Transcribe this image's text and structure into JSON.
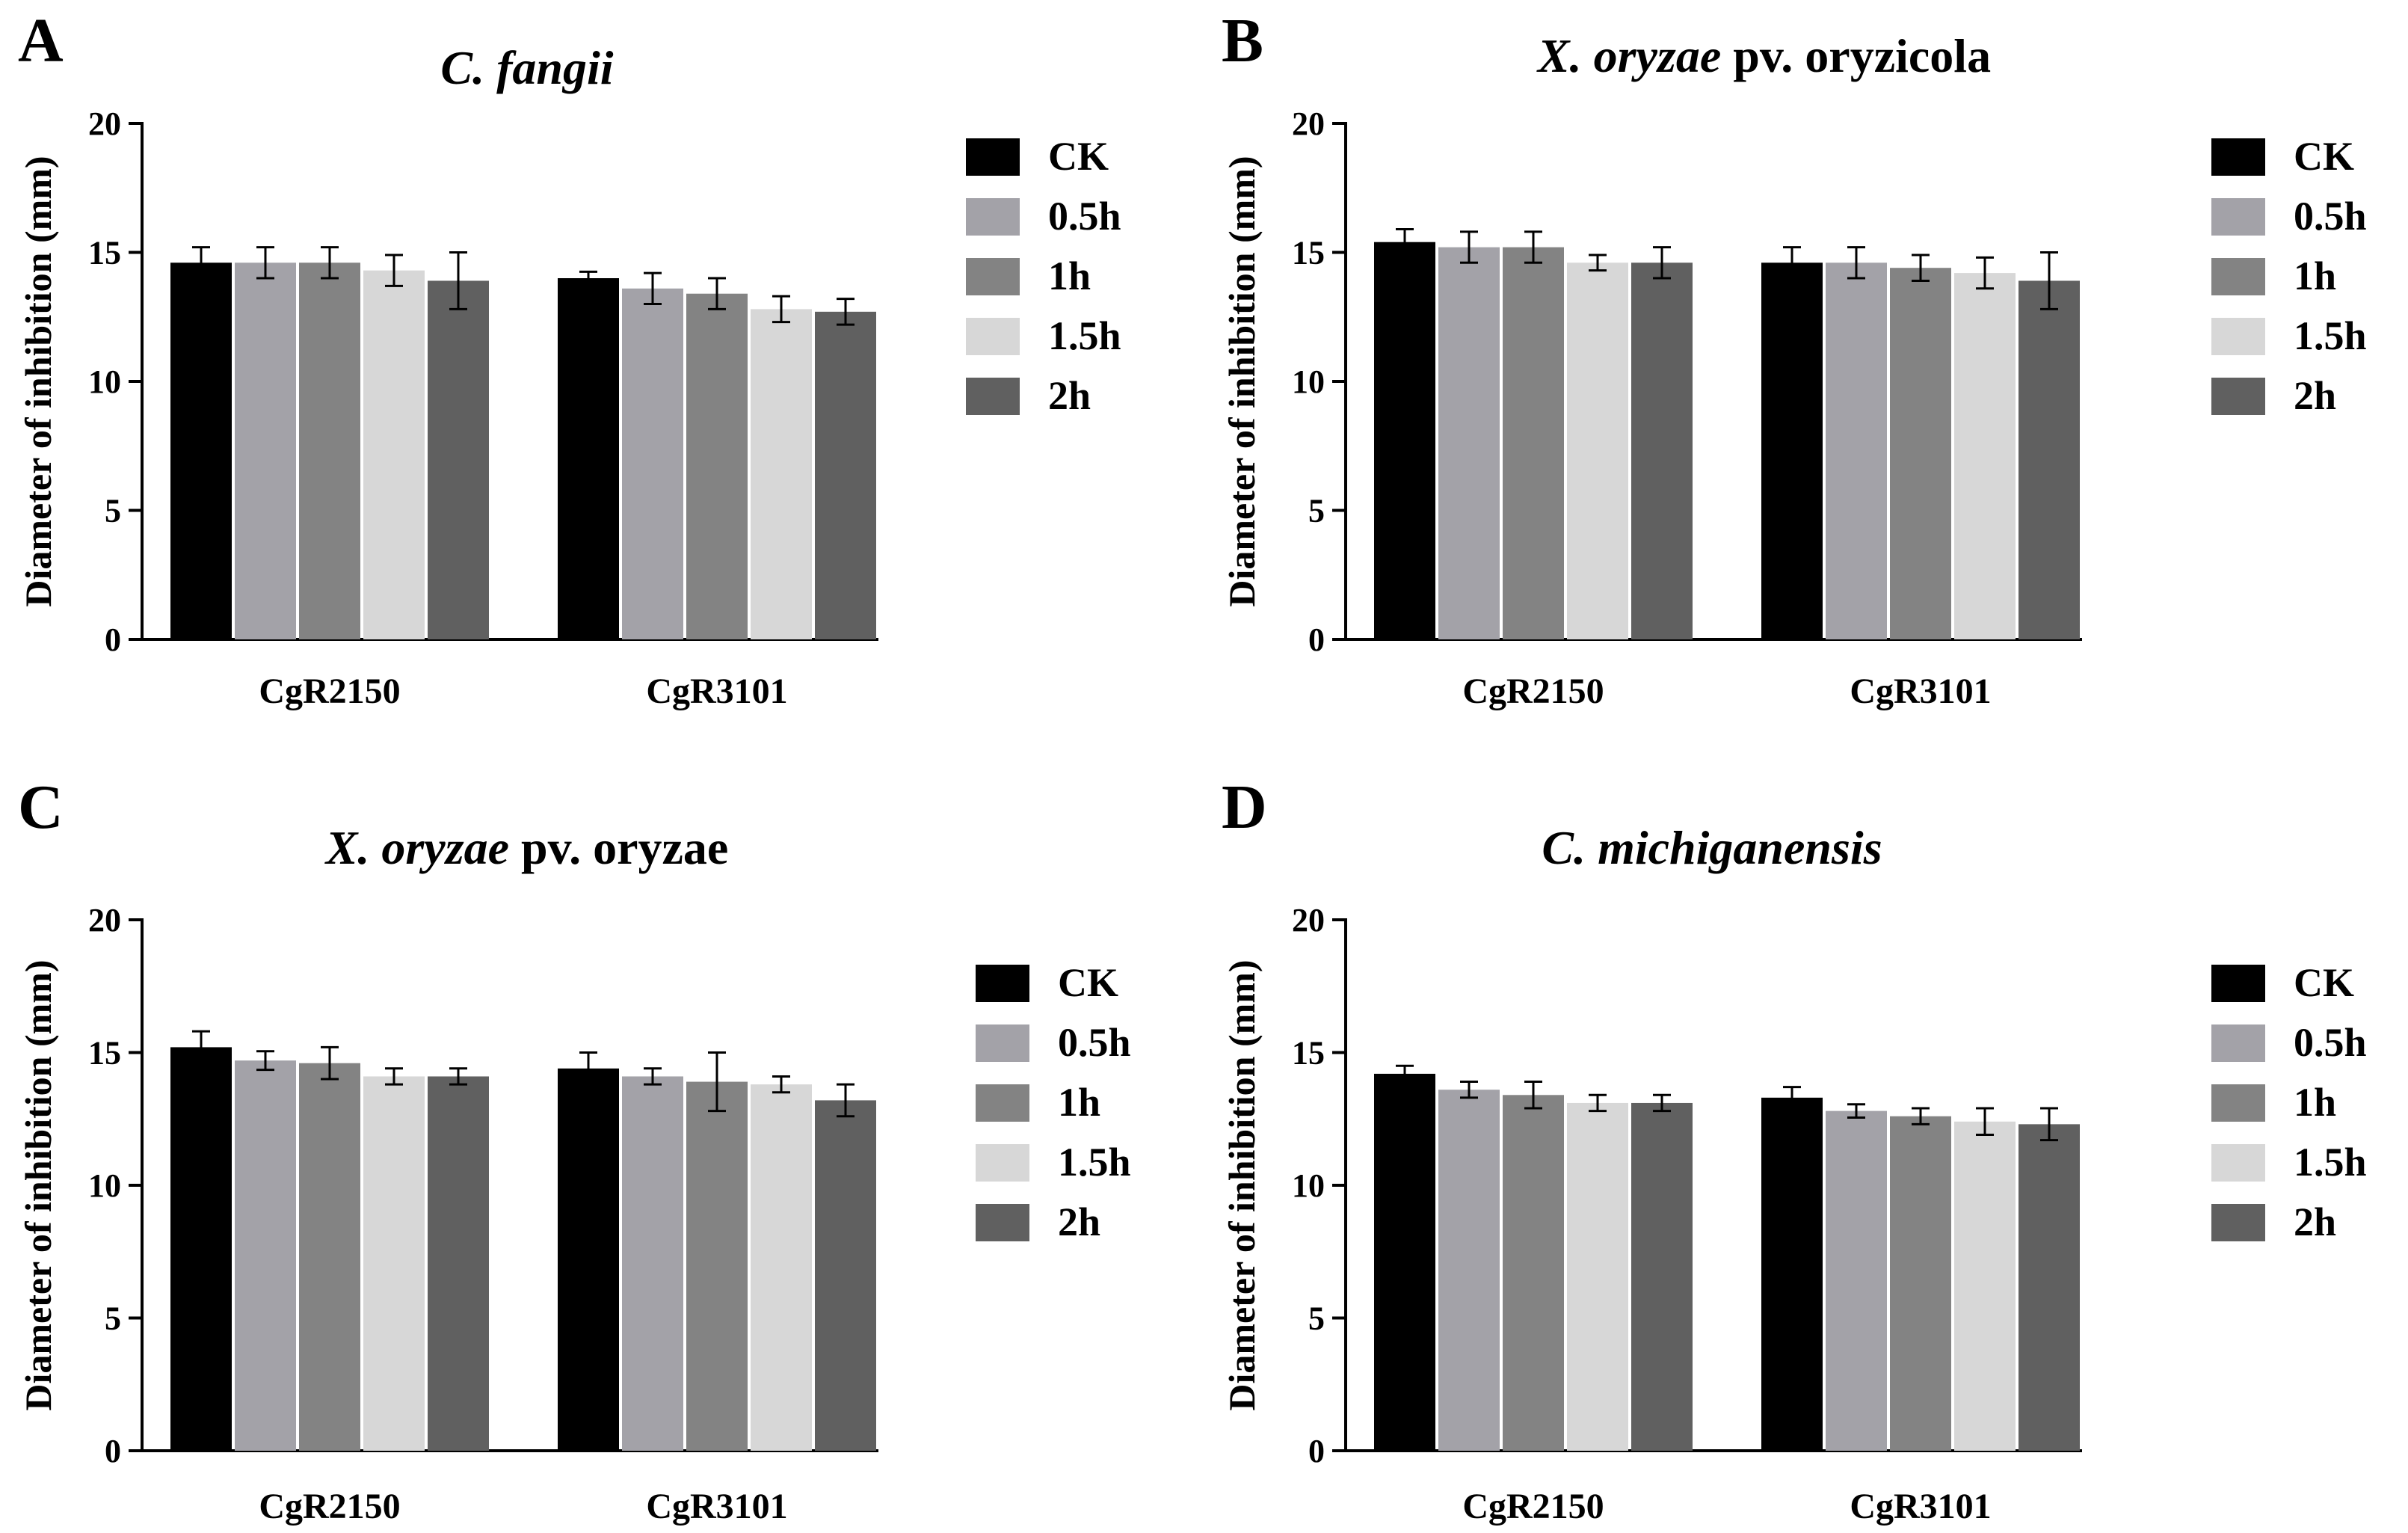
{
  "chart_data": [
    {
      "panel_label": "A",
      "title": {
        "italic": "C. fangii",
        "normal": ""
      },
      "type": "bar",
      "ylabel": "Diameter of inhibition (mm)",
      "xlabel": "",
      "ylim": [
        0,
        20
      ],
      "yticks": [
        "0",
        "5",
        "10",
        "15",
        "20"
      ],
      "categories": [
        "CgR2150",
        "CgR3101"
      ],
      "series": [
        {
          "name": "CK",
          "color": "#000000",
          "values": [
            14.6,
            14.0
          ],
          "errors": [
            0.6,
            0.25
          ]
        },
        {
          "name": "0.5h",
          "color": "#a3a2a8",
          "values": [
            14.6,
            13.6
          ],
          "errors": [
            0.6,
            0.6
          ]
        },
        {
          "name": "1h",
          "color": "#838383",
          "values": [
            14.6,
            13.4
          ],
          "errors": [
            0.6,
            0.6
          ]
        },
        {
          "name": "1.5h",
          "color": "#d7d7d7",
          "values": [
            14.3,
            12.8
          ],
          "errors": [
            0.6,
            0.5
          ]
        },
        {
          "name": "2h",
          "color": "#606060",
          "values": [
            13.9,
            12.7
          ],
          "errors": [
            1.1,
            0.5
          ]
        }
      ]
    },
    {
      "panel_label": "B",
      "title": {
        "italic": "X. oryzae",
        "normal": " pv. oryzicola"
      },
      "type": "bar",
      "ylabel": "Diameter of inhibition (mm)",
      "xlabel": "",
      "ylim": [
        0,
        20
      ],
      "yticks": [
        "0",
        "5",
        "10",
        "15",
        "20"
      ],
      "categories": [
        "CgR2150",
        "CgR3101"
      ],
      "series": [
        {
          "name": "CK",
          "color": "#000000",
          "values": [
            15.4,
            14.6
          ],
          "errors": [
            0.5,
            0.6
          ]
        },
        {
          "name": "0.5h",
          "color": "#a3a2a8",
          "values": [
            15.2,
            14.6
          ],
          "errors": [
            0.6,
            0.6
          ]
        },
        {
          "name": "1h",
          "color": "#838383",
          "values": [
            15.2,
            14.4
          ],
          "errors": [
            0.6,
            0.5
          ]
        },
        {
          "name": "1.5h",
          "color": "#d7d7d7",
          "values": [
            14.6,
            14.2
          ],
          "errors": [
            0.3,
            0.6
          ]
        },
        {
          "name": "2h",
          "color": "#606060",
          "values": [
            14.6,
            13.9
          ],
          "errors": [
            0.6,
            1.1
          ]
        }
      ]
    },
    {
      "panel_label": "C",
      "title": {
        "italic": "X. oryzae",
        "normal": " pv. oryzae"
      },
      "type": "bar",
      "ylabel": "Diameter of inhibition (mm)",
      "xlabel": "",
      "ylim": [
        0,
        20
      ],
      "yticks": [
        "0",
        "5",
        "10",
        "15",
        "20"
      ],
      "categories": [
        "CgR2150",
        "CgR3101"
      ],
      "series": [
        {
          "name": "CK",
          "color": "#000000",
          "values": [
            15.2,
            14.4
          ],
          "errors": [
            0.6,
            0.6
          ]
        },
        {
          "name": "0.5h",
          "color": "#a3a2a8",
          "values": [
            14.7,
            14.1
          ],
          "errors": [
            0.35,
            0.3
          ]
        },
        {
          "name": "1h",
          "color": "#838383",
          "values": [
            14.6,
            13.9
          ],
          "errors": [
            0.6,
            1.1
          ]
        },
        {
          "name": "1.5h",
          "color": "#d7d7d7",
          "values": [
            14.1,
            13.8
          ],
          "errors": [
            0.3,
            0.3
          ]
        },
        {
          "name": "2h",
          "color": "#606060",
          "values": [
            14.1,
            13.2
          ],
          "errors": [
            0.3,
            0.6
          ]
        }
      ]
    },
    {
      "panel_label": "D",
      "title": {
        "italic": "C. michiganensis",
        "normal": ""
      },
      "type": "bar",
      "ylabel": "Diameter of inhibition (mm)",
      "xlabel": "",
      "ylim": [
        0,
        20
      ],
      "yticks": [
        "0",
        "5",
        "10",
        "15",
        "20"
      ],
      "categories": [
        "CgR2150",
        "CgR3101"
      ],
      "series": [
        {
          "name": "CK",
          "color": "#000000",
          "values": [
            14.2,
            13.3
          ],
          "errors": [
            0.3,
            0.4
          ]
        },
        {
          "name": "0.5h",
          "color": "#a3a2a8",
          "values": [
            13.6,
            12.8
          ],
          "errors": [
            0.3,
            0.25
          ]
        },
        {
          "name": "1h",
          "color": "#838383",
          "values": [
            13.4,
            12.6
          ],
          "errors": [
            0.5,
            0.3
          ]
        },
        {
          "name": "1.5h",
          "color": "#d7d7d7",
          "values": [
            13.1,
            12.4
          ],
          "errors": [
            0.3,
            0.5
          ]
        },
        {
          "name": "2h",
          "color": "#606060",
          "values": [
            13.1,
            12.3
          ],
          "errors": [
            0.3,
            0.6
          ]
        }
      ]
    }
  ]
}
